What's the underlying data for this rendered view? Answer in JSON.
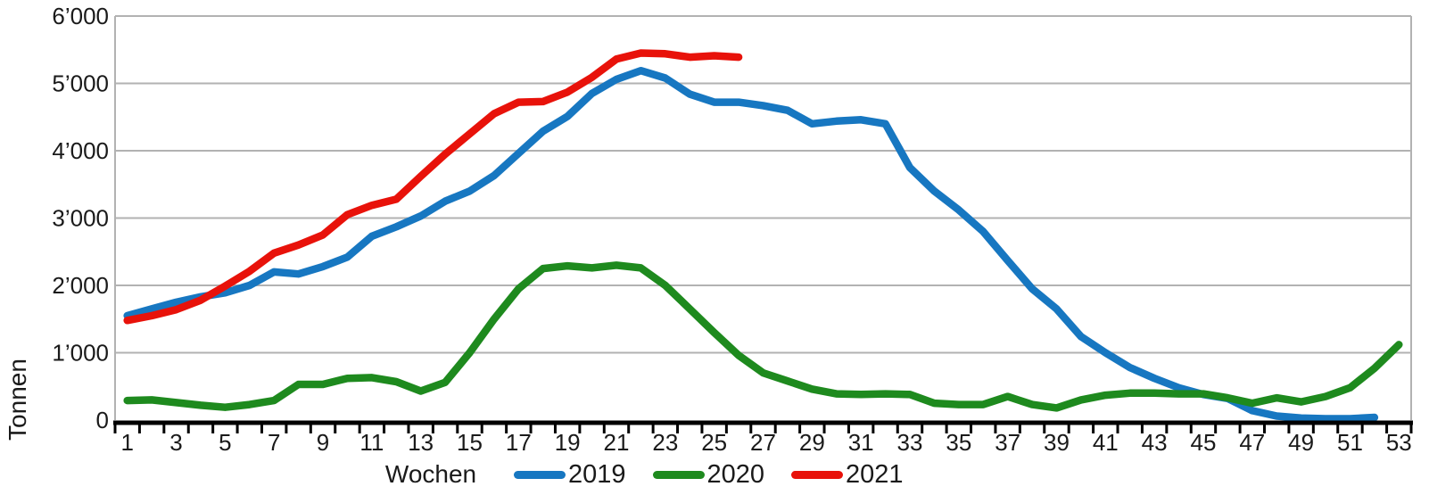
{
  "chart_data": {
    "type": "line",
    "title": "",
    "xlabel": "Wochen",
    "ylabel": "Tonnen",
    "ylim": [
      0,
      6000
    ],
    "y_tick_step": 1000,
    "y_tick_labels": [
      "0",
      "1’000",
      "2’000",
      "3’000",
      "4’000",
      "5’000",
      "6’000"
    ],
    "x_categories": [
      "1",
      "2",
      "3",
      "4",
      "5",
      "6",
      "7",
      "8",
      "9",
      "10",
      "11",
      "12",
      "13",
      "14",
      "15",
      "16",
      "17",
      "18",
      "19",
      "20",
      "21",
      "22",
      "23",
      "24",
      "25",
      "26",
      "27",
      "28",
      "29",
      "30",
      "31",
      "32",
      "33",
      "34",
      "35",
      "36",
      "37",
      "38",
      "39",
      "40",
      "41",
      "42",
      "43",
      "44",
      "45",
      "46",
      "47",
      "48",
      "49",
      "50",
      "51",
      "52",
      "53"
    ],
    "x_labeled_every": 2,
    "grid": "horizontal",
    "legend_position": "bottom",
    "colors": {
      "grid": "#b2b2b2",
      "axis": "#000000",
      "text": "#1a1a1a"
    },
    "series": [
      {
        "name": "2019",
        "color": "#1777c1",
        "values": [
          1550,
          1650,
          1750,
          1830,
          1890,
          2000,
          2200,
          2170,
          2280,
          2420,
          2730,
          2870,
          3030,
          3250,
          3400,
          3630,
          3960,
          4290,
          4510,
          4850,
          5060,
          5190,
          5080,
          4840,
          4720,
          4720,
          4670,
          4600,
          4400,
          4440,
          4460,
          4400,
          3750,
          3400,
          3120,
          2800,
          2370,
          1950,
          1650,
          1240,
          1000,
          780,
          620,
          480,
          380,
          320,
          140,
          60,
          30,
          20,
          20,
          40
        ]
      },
      {
        "name": "2020",
        "color": "#1e8a1e",
        "values": [
          290,
          300,
          260,
          220,
          190,
          230,
          290,
          530,
          530,
          620,
          630,
          570,
          430,
          560,
          1000,
          1500,
          1950,
          2250,
          2290,
          2260,
          2300,
          2260,
          2000,
          1650,
          1300,
          960,
          700,
          580,
          460,
          390,
          380,
          390,
          380,
          250,
          230,
          230,
          350,
          230,
          180,
          300,
          370,
          400,
          400,
          390,
          390,
          330,
          250,
          330,
          270,
          350,
          480,
          770,
          1120
        ]
      },
      {
        "name": "2021",
        "color": "#e8120a",
        "values": [
          1480,
          1550,
          1640,
          1780,
          1990,
          2210,
          2480,
          2600,
          2750,
          3050,
          3190,
          3280,
          3620,
          3950,
          4250,
          4550,
          4720,
          4730,
          4870,
          5090,
          5360,
          5450,
          5440,
          5390,
          5410,
          5390
        ]
      }
    ]
  }
}
